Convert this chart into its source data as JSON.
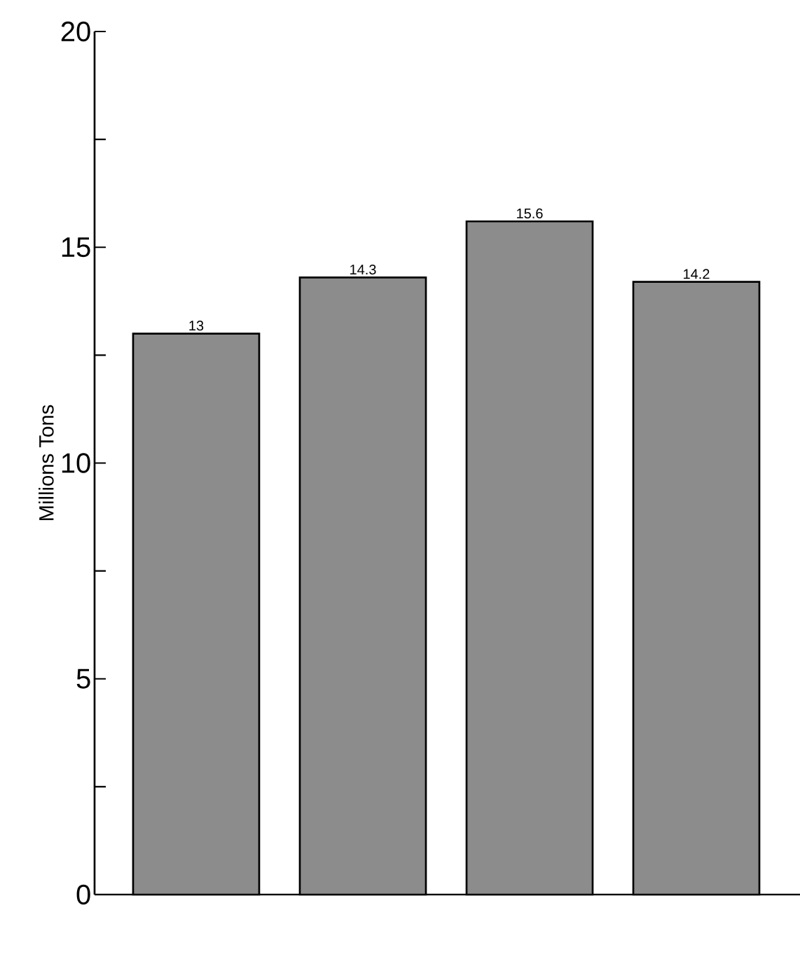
{
  "chart_data": {
    "type": "bar",
    "ylabel": "Millions Tons",
    "categories": [
      null,
      null,
      null,
      null
    ],
    "values": [
      13,
      14.3,
      15.6,
      14.2
    ],
    "color": "#8c8c8c",
    "data_labels": true,
    "ylim": [
      0,
      20
    ],
    "yticks": [
      0,
      {
        "value": 2.5,
        "label": null
      },
      5,
      {
        "value": 7.5,
        "label": null
      },
      10,
      {
        "value": 12.5,
        "label": null
      },
      15,
      {
        "value": 17.5,
        "label": null
      },
      20
    ]
  }
}
